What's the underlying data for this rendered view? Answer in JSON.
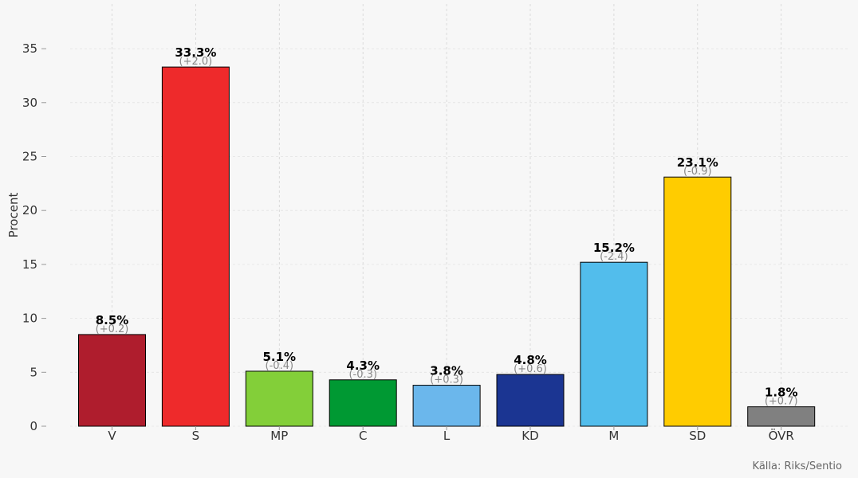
{
  "chart_data": {
    "type": "bar",
    "title": "",
    "xlabel": "",
    "ylabel": "Procent",
    "ylim": [
      0,
      37.5
    ],
    "yticks": [
      0,
      5,
      10,
      15,
      20,
      25,
      30,
      35
    ],
    "grid": true,
    "categories": [
      "V",
      "S",
      "MP",
      "C",
      "L",
      "KD",
      "M",
      "SD",
      "ÖVR"
    ],
    "values": [
      8.5,
      33.3,
      5.1,
      4.3,
      3.8,
      4.8,
      15.2,
      23.1,
      1.8
    ],
    "value_labels": [
      "8.5%",
      "33.3%",
      "5.1%",
      "4.3%",
      "3.8%",
      "4.8%",
      "15.2%",
      "23.1%",
      "1.8%"
    ],
    "change_labels": [
      "(+0.2)",
      "(+2.0)",
      "(-0.4)",
      "(-0.3)",
      "(+0.3)",
      "(+0.6)",
      "(-2.4)",
      "(-0.9)",
      "(+0.7)"
    ],
    "colors": [
      "#AF1D2D",
      "#EE2A2B",
      "#83CF39",
      "#009933",
      "#6BB7EC",
      "#1B3592",
      "#52BDEC",
      "#FFCC00",
      "#808080"
    ]
  },
  "source": "Källa: Riks/Sentio"
}
